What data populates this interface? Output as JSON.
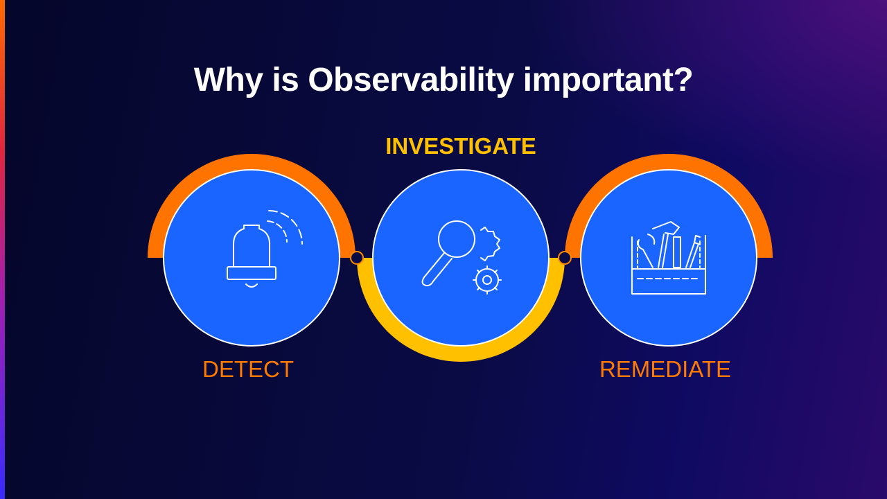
{
  "slide": {
    "title": "Why is Observability important?"
  },
  "steps": [
    {
      "label": "DETECT",
      "icon": "bell-icon",
      "arc_color": "#ff7300",
      "label_color": "#ff7a00"
    },
    {
      "label": "INVESTIGATE",
      "icon": "magnifier-gears-icon",
      "arc_color": "#ffc000",
      "label_color": "#ffc000"
    },
    {
      "label": "REMEDIATE",
      "icon": "toolbox-icon",
      "arc_color": "#ff7300",
      "label_color": "#ff7a00"
    }
  ],
  "colors": {
    "circle_fill": "#1a64ff",
    "background_dark": "#05062a",
    "background_accent": "#2a0a6a",
    "title_text": "#ffffff"
  }
}
